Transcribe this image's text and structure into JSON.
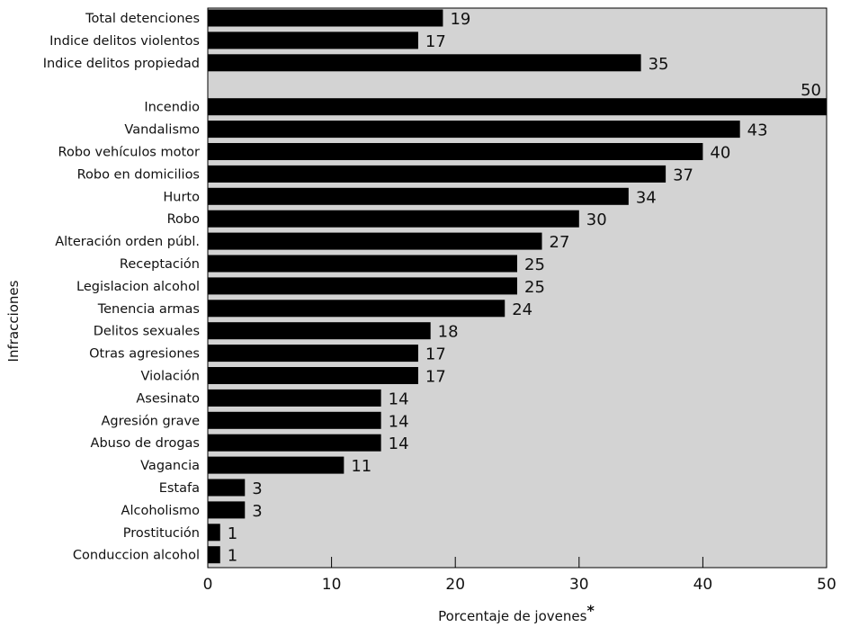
{
  "chart_data": {
    "type": "bar",
    "orientation": "horizontal",
    "xlabel": "Porcentaje de jovenes",
    "xlabel_marker": "*",
    "ylabel": "Infracciones",
    "xlim": [
      0,
      50
    ],
    "xticks": [
      0,
      10,
      20,
      30,
      40,
      50
    ],
    "grid": false,
    "plot_background": "#d3d3d3",
    "bar_color": "#000000",
    "groups": [
      {
        "categories": [
          "Total detenciones",
          "Indice delitos violentos",
          "Indice delitos propiedad"
        ],
        "values": [
          19,
          17,
          35
        ]
      },
      {
        "categories": [
          "Incendio",
          "Vandalismo",
          "Robo vehículos motor",
          "Robo en domicilios",
          "Hurto",
          "Robo",
          "Alteración orden públ.",
          "Receptación",
          "Legislacion alcohol",
          "Tenencia armas",
          "Delitos sexuales",
          "Otras agresiones",
          "Violación",
          "Asesinato",
          "Agresión grave",
          "Abuso de drogas",
          "Vagancia",
          "Estafa",
          "Alcoholismo",
          "Prostitución",
          "Conduccion alcohol"
        ],
        "values": [
          50,
          43,
          40,
          37,
          34,
          30,
          27,
          25,
          25,
          24,
          18,
          17,
          17,
          14,
          14,
          14,
          11,
          3,
          3,
          1,
          1
        ]
      }
    ]
  }
}
